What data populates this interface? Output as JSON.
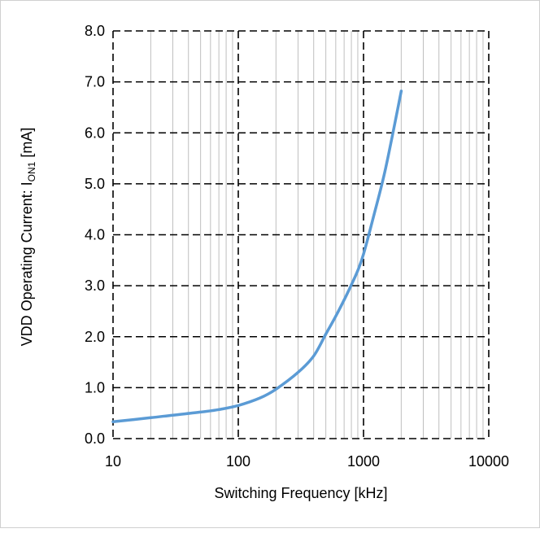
{
  "chart_data": {
    "type": "line",
    "title": "",
    "xlabel": "Switching Frequency [kHz]",
    "ylabel": {
      "prefix": "VDD Operating Current: I",
      "subscript": "ON1",
      "suffix": " [mA]"
    },
    "x_scale": "log",
    "xlim": [
      10,
      10000
    ],
    "ylim": [
      0,
      8
    ],
    "x_ticks": [
      "10",
      "100",
      "1000",
      "10000"
    ],
    "y_ticks": [
      "0.0",
      "1.0",
      "2.0",
      "3.0",
      "4.0",
      "5.0",
      "6.0",
      "7.0",
      "8.0"
    ],
    "grid": {
      "major": "dashed-black",
      "minor_x": "solid-gray"
    },
    "legend": "none",
    "series": [
      {
        "color": "#5b9bd5",
        "x": [
          10,
          20,
          30,
          50,
          70,
          100,
          150,
          200,
          300,
          400,
          500,
          600,
          700,
          800,
          900,
          1000,
          1200,
          1500,
          2000
        ],
        "y": [
          0.33,
          0.41,
          0.46,
          0.52,
          0.57,
          0.65,
          0.8,
          0.97,
          1.3,
          1.62,
          2.05,
          2.4,
          2.72,
          3.02,
          3.3,
          3.62,
          4.35,
          5.3,
          6.82
        ]
      }
    ]
  }
}
